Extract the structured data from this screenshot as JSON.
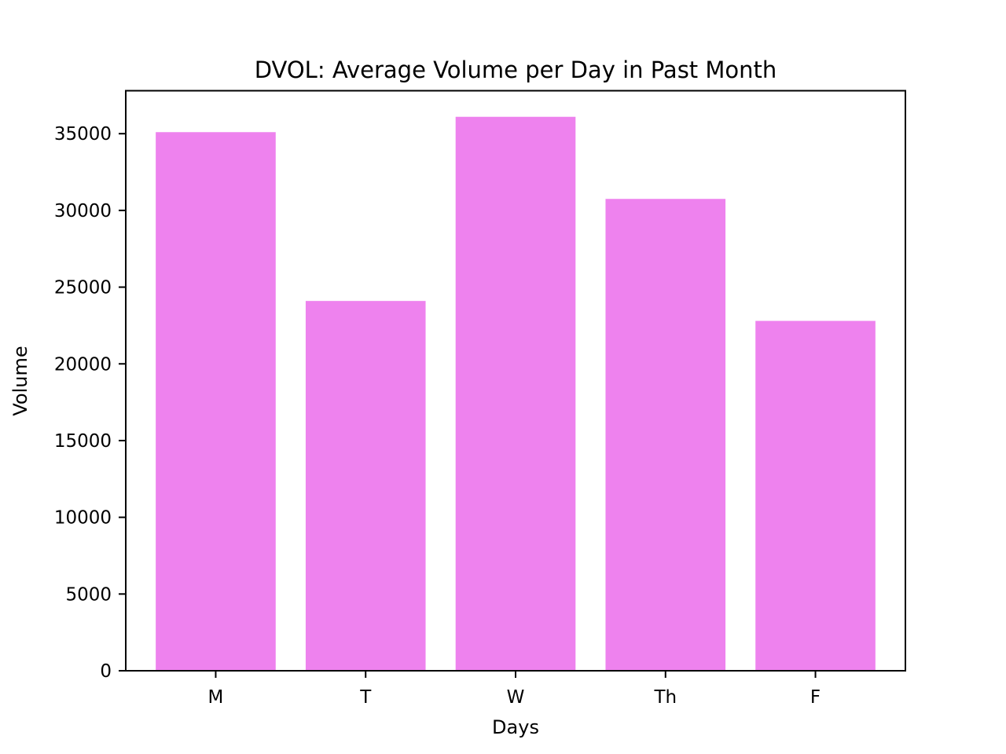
{
  "chart_data": {
    "type": "bar",
    "title": "DVOL: Average Volume per Day in Past Month",
    "xlabel": "Days",
    "ylabel": "Volume",
    "categories": [
      "M",
      "T",
      "W",
      "Th",
      "F"
    ],
    "values": [
      35100,
      24100,
      36100,
      30750,
      22800
    ],
    "ylim": [
      0,
      37800
    ],
    "yticks": [
      0,
      5000,
      10000,
      15000,
      20000,
      25000,
      30000,
      35000
    ],
    "grid": false,
    "legend": "none",
    "bar_color": "#ee82ee"
  }
}
